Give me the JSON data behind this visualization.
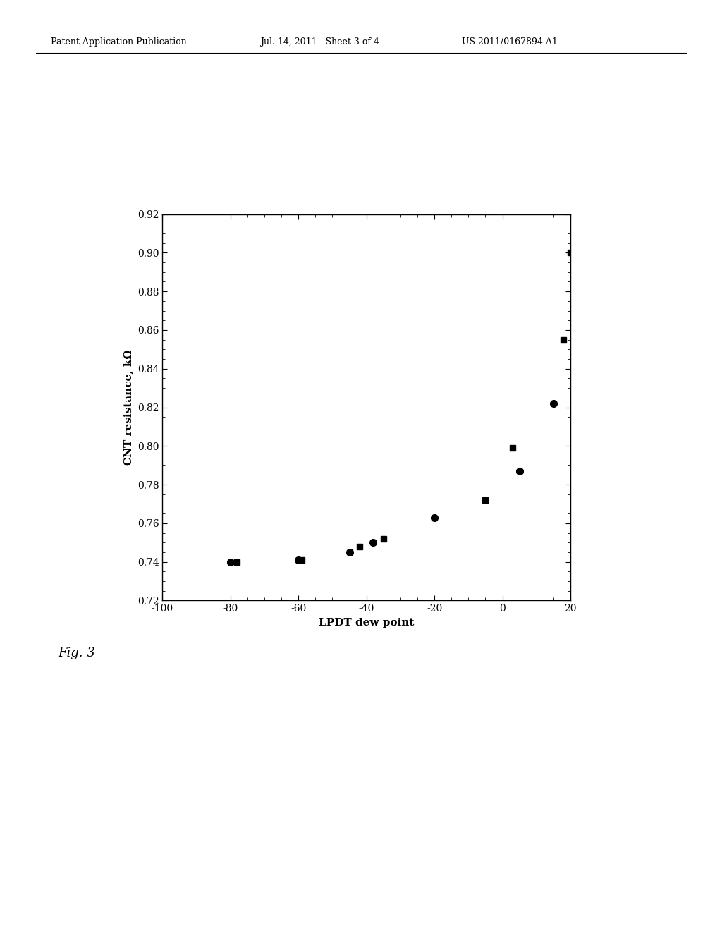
{
  "header_left": "Patent Application Publication",
  "header_mid": "Jul. 14, 2011   Sheet 3 of 4",
  "header_right": "US 2011/0167894 A1",
  "fig_caption": "Fig. 3",
  "xlabel": "LPDT dew point",
  "ylabel": "CNT resistance, kΩ",
  "xlim": [
    -100,
    20
  ],
  "ylim": [
    0.72,
    0.92
  ],
  "xticks": [
    -100,
    -80,
    -60,
    -40,
    -20,
    0,
    20
  ],
  "yticks": [
    0.72,
    0.74,
    0.76,
    0.78,
    0.8,
    0.82,
    0.84,
    0.86,
    0.88,
    0.9,
    0.92
  ],
  "circles_x": [
    -80,
    -60,
    -45,
    -38,
    -20,
    -5,
    5,
    15
  ],
  "circles_y": [
    0.74,
    0.741,
    0.745,
    0.75,
    0.763,
    0.772,
    0.787,
    0.822
  ],
  "squares_x": [
    -78,
    -59,
    -42,
    -35,
    -5,
    3,
    18,
    20
  ],
  "squares_y": [
    0.74,
    0.741,
    0.748,
    0.752,
    0.772,
    0.799,
    0.855,
    0.9
  ],
  "marker_color": "#000000",
  "background_color": "#ffffff",
  "axis_color": "#000000",
  "tick_fontsize": 10,
  "label_fontsize": 11,
  "header_fontsize": 9,
  "caption_fontsize": 13,
  "marker_size_circle": 7,
  "marker_size_square": 6
}
